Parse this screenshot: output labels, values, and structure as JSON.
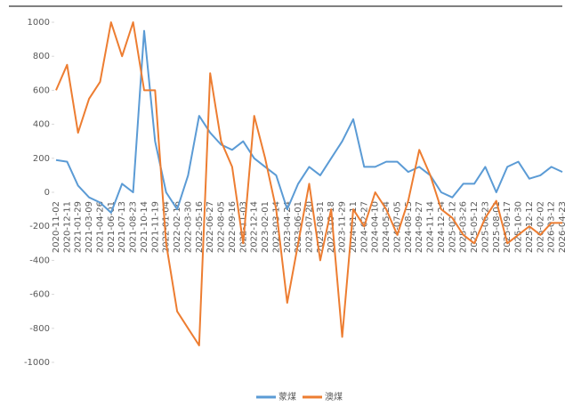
{
  "chart_data": {
    "type": "line",
    "categories": [
      "2020-11-02",
      "2020-12-11",
      "2021-01-29",
      "2021-03-09",
      "2021-04-26",
      "2021-06-01",
      "2021-07-13",
      "2021-08-23",
      "2021-10-14",
      "2021-11-19",
      "2022-01-04",
      "2022-02-16",
      "2022-03-30",
      "2022-05-16",
      "2022-06-27",
      "2022-08-05",
      "2022-09-16",
      "2022-11-03",
      "2022-12-14",
      "2023-02-01",
      "2023-03-14",
      "2023-04-24",
      "2023-06-01",
      "2023-07-20",
      "2023-08-31",
      "2023-10-18",
      "2023-11-29",
      "2024-01-11",
      "2024-02-27",
      "2024-04-10",
      "2024-05-24",
      "2024-07-05",
      "2024-08-15",
      "2024-09-27",
      "2024-11-14",
      "2024-12-24",
      "2025-02-12",
      "2025-03-26",
      "2025-05-12",
      "2025-06-23",
      "2025-08-01",
      "2025-09-17",
      "2025-10-30",
      "2025-12-12",
      "2026-02-02",
      "2026-03-12",
      "2026-04-23"
    ],
    "series": [
      {
        "name": "蒙煤",
        "color": "#5b9bd5",
        "values": [
          190,
          180,
          40,
          -30,
          -60,
          -120,
          50,
          0,
          950,
          300,
          0,
          -100,
          100,
          450,
          350,
          280,
          250,
          300,
          200,
          150,
          100,
          -100,
          50,
          150,
          100,
          200,
          300,
          430,
          150,
          150,
          180,
          180,
          120,
          150,
          100,
          0,
          -30,
          50,
          50,
          150,
          0,
          150,
          180,
          80,
          100,
          150,
          120
        ]
      },
      {
        "name": "澳煤",
        "color": "#ed7d31",
        "values": [
          600,
          750,
          350,
          550,
          650,
          1000,
          800,
          1000,
          600,
          600,
          -300,
          -700,
          -800,
          -900,
          700,
          300,
          150,
          -300,
          450,
          200,
          -100,
          -650,
          -300,
          50,
          -400,
          -100,
          -850,
          -100,
          -200,
          0,
          -100,
          -250,
          -50,
          250,
          100,
          -100,
          -150,
          -250,
          -300,
          -150,
          -50,
          -300,
          -250,
          -200,
          -250,
          -180,
          -180
        ]
      }
    ],
    "ylim": [
      -1000,
      1000
    ],
    "yticks": [
      -1000,
      -800,
      -600,
      -400,
      -200,
      0,
      200,
      400,
      600,
      800,
      1000
    ],
    "grid": false
  }
}
